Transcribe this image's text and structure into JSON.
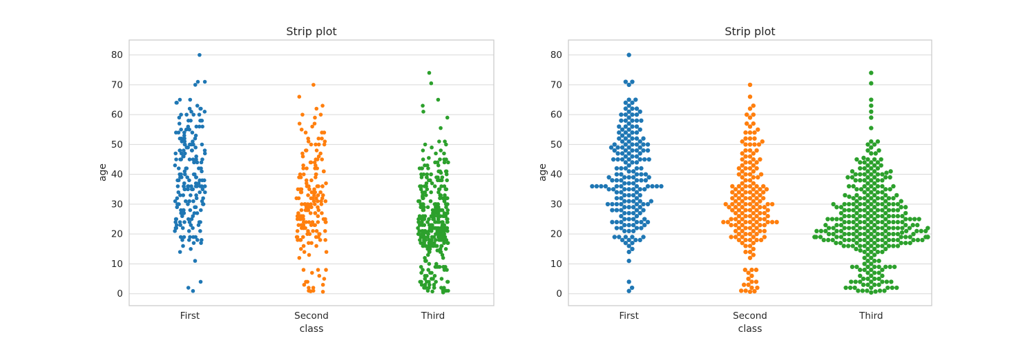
{
  "figure": {
    "background": "#ffffff"
  },
  "style": {
    "grid_color": "#d9d9d9",
    "spine_color": "#c8c8c8",
    "text_color": "#262626",
    "point_colors": [
      "#1f77b4",
      "#ff7f0e",
      "#2ca02c"
    ]
  },
  "chart_data": [
    {
      "type": "strip",
      "title": "Strip plot",
      "xlabel": "class",
      "ylabel": "age",
      "categories": [
        "First",
        "Second",
        "Third"
      ],
      "yticks": [
        0,
        10,
        20,
        30,
        40,
        50,
        60,
        70,
        80
      ],
      "ylim": [
        -4,
        85
      ],
      "grid": true,
      "legend": "none",
      "colors": [
        "#1f77b4",
        "#ff7f0e",
        "#2ca02c"
      ],
      "series": [
        {
          "name": "First",
          "values": [
            0.92,
            2,
            4,
            11,
            14,
            15,
            16,
            17,
            17,
            18,
            18,
            18,
            18,
            19,
            19,
            19,
            19,
            19,
            21,
            21,
            21,
            22,
            22,
            22,
            22,
            23,
            23,
            23,
            23,
            24,
            24,
            24,
            24,
            24,
            24,
            25,
            25,
            25,
            25,
            26,
            26,
            27,
            27,
            27,
            27,
            28,
            28,
            28,
            28,
            28,
            29,
            29,
            29,
            29,
            30,
            30,
            30,
            30,
            30,
            30,
            30,
            31,
            31,
            31,
            31,
            31,
            32,
            32,
            32,
            33,
            33,
            33,
            33,
            34,
            34,
            34,
            35,
            35,
            35,
            35,
            35,
            35,
            35,
            36,
            36,
            36,
            36,
            36,
            36,
            36,
            36,
            36,
            36,
            36,
            37,
            37,
            37,
            38,
            38,
            38,
            38,
            38,
            38,
            39,
            39,
            39,
            39,
            39,
            40,
            40,
            40,
            40,
            40,
            41,
            41,
            42,
            42,
            42,
            42,
            42,
            43,
            44,
            44,
            44,
            45,
            45,
            45,
            45,
            45,
            45,
            45,
            46,
            46,
            46,
            47,
            47,
            47,
            47,
            48,
            48,
            48,
            48,
            48,
            48,
            49,
            49,
            49,
            49,
            49,
            50,
            50,
            50,
            50,
            50,
            50,
            51,
            51,
            51,
            52,
            52,
            52,
            52,
            52,
            53,
            53,
            54,
            54,
            54,
            54,
            55,
            55,
            55,
            56,
            56,
            56,
            56,
            57,
            58,
            58,
            58,
            58,
            58,
            59,
            60,
            60,
            60,
            60,
            61,
            61,
            62,
            62,
            62,
            63,
            64,
            64,
            65,
            65,
            70,
            71,
            71,
            80
          ]
        },
        {
          "name": "Second",
          "values": [
            0.67,
            0.83,
            1,
            1,
            2,
            2,
            3,
            3,
            4,
            4,
            5,
            6,
            7,
            8,
            8,
            8,
            12,
            13,
            14,
            14,
            15,
            16,
            16,
            17,
            17,
            18,
            18,
            18,
            18,
            18,
            19,
            19,
            19,
            19,
            19,
            20,
            20,
            20,
            20,
            21,
            21,
            21,
            21,
            21,
            22,
            22,
            22,
            22,
            23,
            23,
            23,
            23,
            23,
            23,
            24,
            24,
            24,
            24,
            24,
            24,
            24,
            24,
            24,
            25,
            25,
            25,
            25,
            25,
            25,
            26,
            26,
            26,
            26,
            26,
            27,
            27,
            27,
            27,
            27,
            28,
            28,
            28,
            28,
            28,
            28,
            29,
            29,
            29,
            29,
            29,
            29,
            30,
            30,
            30,
            30,
            30,
            30,
            30,
            30,
            31,
            31,
            31,
            31,
            32,
            32,
            32,
            32,
            32,
            32,
            33,
            33,
            33,
            33,
            34,
            34,
            34,
            34,
            34,
            34,
            35,
            35,
            35,
            35,
            35,
            36,
            36,
            36,
            36,
            36,
            36,
            37,
            37,
            38,
            38,
            39,
            39,
            39,
            40,
            40,
            40,
            40,
            41,
            41,
            42,
            42,
            42,
            42,
            43,
            43,
            44,
            44,
            44,
            45,
            45,
            45,
            46,
            46,
            47,
            47,
            48,
            48,
            48,
            50,
            50,
            50,
            50,
            51,
            51,
            52,
            52,
            52,
            54,
            54,
            54,
            55,
            56,
            57,
            57,
            59,
            60,
            60,
            62,
            63,
            66,
            70
          ]
        },
        {
          "name": "Third",
          "values": [
            0.42,
            0.75,
            1,
            1,
            1,
            1,
            1,
            2,
            2,
            2,
            2,
            2,
            2,
            2,
            3,
            3,
            3,
            3,
            4,
            4,
            4,
            4,
            4,
            4,
            4,
            5,
            5,
            5,
            5,
            6,
            6,
            6,
            7,
            7,
            7,
            8,
            8,
            8,
            8,
            9,
            9,
            9,
            9,
            9,
            9,
            9,
            9,
            10,
            10,
            11,
            11,
            11,
            12,
            12,
            13,
            13,
            14,
            14,
            14,
            14,
            14.5,
            15,
            15,
            15,
            15,
            16,
            16,
            16,
            16,
            16,
            16,
            16,
            16,
            16,
            16,
            16,
            17,
            17,
            17,
            17,
            17,
            17,
            17,
            17,
            17,
            18,
            18,
            18,
            18,
            18,
            18,
            18,
            18,
            18,
            18,
            18,
            18,
            18,
            18,
            18,
            18,
            18,
            19,
            19,
            19,
            19,
            19,
            19,
            19,
            19,
            19,
            19,
            19,
            19,
            19,
            19,
            19,
            19,
            20,
            20,
            20,
            20,
            20,
            20,
            20,
            20,
            20,
            20,
            20,
            20,
            20,
            20,
            20.5,
            21,
            21,
            21,
            21,
            21,
            21,
            21,
            21,
            21,
            21,
            21,
            21,
            21,
            22,
            22,
            22,
            22,
            22,
            22,
            22,
            22,
            22,
            22,
            22,
            22,
            22,
            22,
            22,
            22,
            23,
            23,
            23,
            23,
            23,
            23,
            23,
            23,
            23,
            23,
            24,
            24,
            24,
            24,
            24,
            24,
            24,
            24,
            24,
            24,
            24,
            24,
            25,
            25,
            25,
            25,
            25,
            25,
            25,
            25,
            25,
            25,
            25,
            25,
            26,
            26,
            26,
            26,
            26,
            26,
            26,
            26,
            26,
            26,
            26,
            26,
            27,
            27,
            27,
            27,
            27,
            27,
            28,
            28,
            28,
            28,
            28,
            28,
            28,
            28,
            28,
            28,
            28,
            29,
            29,
            29,
            29,
            29,
            29,
            29,
            29,
            30,
            30,
            30,
            30,
            30,
            30,
            30,
            30,
            30,
            30,
            30,
            30,
            31,
            31,
            31,
            31,
            31,
            32,
            32,
            32,
            32,
            32,
            32,
            32,
            32,
            32.5,
            33,
            33,
            33,
            33,
            33,
            33,
            34,
            34,
            34,
            34,
            35,
            35,
            35,
            35,
            35,
            35,
            36,
            36,
            36,
            36,
            36,
            36,
            36,
            37,
            37,
            38,
            38,
            38,
            38,
            38,
            38,
            39,
            39,
            39,
            39,
            39,
            39,
            40,
            40,
            40,
            40,
            40,
            40,
            40.5,
            41,
            41,
            41,
            41,
            42,
            42,
            42,
            42,
            43,
            43,
            43,
            44,
            44,
            44,
            44,
            45,
            45,
            45,
            45,
            45.5,
            47,
            47,
            48,
            48,
            49,
            50,
            50,
            51,
            51,
            55.5,
            59,
            61,
            63,
            65,
            70.5,
            74
          ]
        }
      ]
    },
    {
      "type": "swarm",
      "title": "Strip plot",
      "xlabel": "class",
      "ylabel": "age",
      "categories": [
        "First",
        "Second",
        "Third"
      ],
      "yticks": [
        0,
        10,
        20,
        30,
        40,
        50,
        60,
        70,
        80
      ],
      "ylim": [
        -4,
        85
      ],
      "grid": true,
      "legend": "none",
      "colors": [
        "#1f77b4",
        "#ff7f0e",
        "#2ca02c"
      ],
      "series_same_as": 0
    }
  ]
}
